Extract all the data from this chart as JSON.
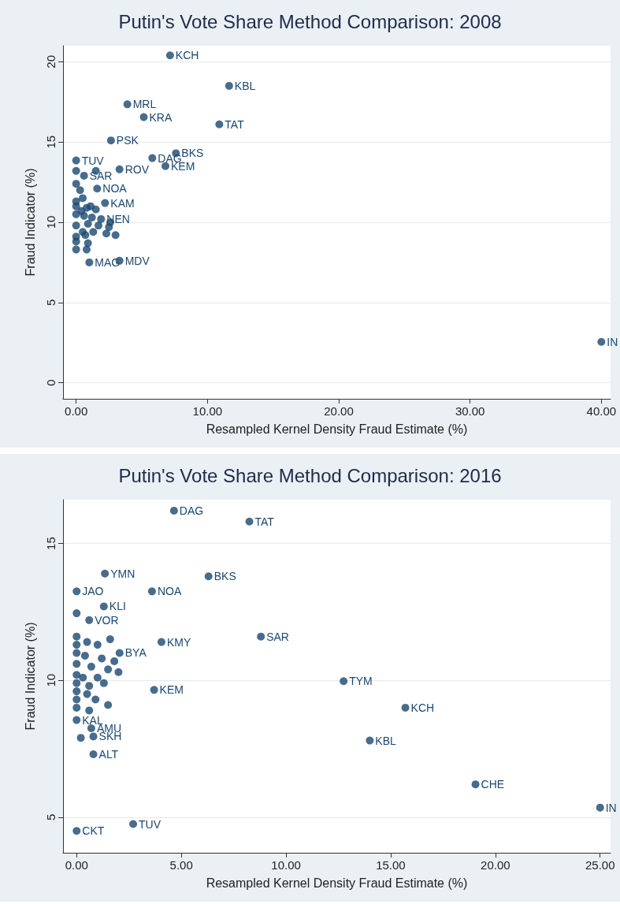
{
  "chart_data": [
    {
      "type": "scatter",
      "title": "Putin's Vote Share Method Comparison: 2008",
      "xlabel": "Resampled Kernel Density Fraud Estimate (%)",
      "ylabel": "Fraud Indicator (%)",
      "x": [
        7.15,
        11.65,
        3.9,
        5.15,
        10.9,
        2.65,
        7.6,
        5.8,
        6.8,
        0,
        3.3,
        1.0,
        40.0,
        0.6,
        1.6,
        2.2,
        1.9,
        3.3,
        0,
        1.5,
        0,
        0.3,
        0.5,
        0,
        0,
        0.8,
        1.5,
        0,
        0.6,
        1.2,
        0.9,
        1.7,
        2.5,
        0.5,
        1.3,
        2.3,
        0,
        0.7,
        0,
        0.9,
        0,
        0.8,
        0,
        2.6,
        3.0,
        0.4,
        1.1
      ],
      "series": [
        {
          "color": "#1a476f",
          "values": [
            20.4,
            18.5,
            17.35,
            16.55,
            16.1,
            15.1,
            14.3,
            14.0,
            13.5,
            13.85,
            7.6,
            7.5,
            2.55,
            12.9,
            12.1,
            11.2,
            10.2,
            13.3,
            13.2,
            13.2,
            12.4,
            12.0,
            11.5,
            11.3,
            11.0,
            10.9,
            10.8,
            10.5,
            10.4,
            10.3,
            9.9,
            9.8,
            9.7,
            9.4,
            9.4,
            9.3,
            9.1,
            9.2,
            8.8,
            8.7,
            8.3,
            8.3,
            9.8,
            10.0,
            9.2,
            10.7,
            11.0
          ]
        }
      ],
      "xlim": [
        -1,
        40.7
      ],
      "ylim": [
        -1,
        21
      ],
      "xticks": [
        {
          "value": 0,
          "label": "0.00"
        },
        {
          "value": 10,
          "label": "10.00"
        },
        {
          "value": 20,
          "label": "20.00"
        },
        {
          "value": 30,
          "label": "30.00"
        },
        {
          "value": 40,
          "label": "40.00"
        }
      ],
      "yticks": [
        0,
        5,
        10,
        15,
        20
      ],
      "grid": "y",
      "marker": "circle",
      "annotations": [
        {
          "text": "KCH",
          "x": 7.15,
          "y": 20.4
        },
        {
          "text": "KBL",
          "x": 11.65,
          "y": 18.5
        },
        {
          "text": "MRL",
          "x": 3.9,
          "y": 17.35
        },
        {
          "text": "KRA",
          "x": 5.15,
          "y": 16.55
        },
        {
          "text": "TAT",
          "x": 10.9,
          "y": 16.1
        },
        {
          "text": "PSK",
          "x": 2.65,
          "y": 15.1
        },
        {
          "text": "BKS",
          "x": 7.6,
          "y": 14.3
        },
        {
          "text": "DAG",
          "x": 5.8,
          "y": 14.0
        },
        {
          "text": "KEM",
          "x": 6.8,
          "y": 13.5
        },
        {
          "text": "TUV",
          "x": 0,
          "y": 13.85
        },
        {
          "text": "MDV",
          "x": 3.3,
          "y": 7.6
        },
        {
          "text": "MAG",
          "x": 1.0,
          "y": 7.5
        },
        {
          "text": "IN",
          "x": 40.0,
          "y": 2.55
        },
        {
          "text": "SAR",
          "x": 0.6,
          "y": 12.9
        },
        {
          "text": "NOA",
          "x": 1.6,
          "y": 12.1
        },
        {
          "text": "KAM",
          "x": 2.2,
          "y": 11.2
        },
        {
          "text": "NEN",
          "x": 1.9,
          "y": 10.2
        },
        {
          "text": "ROV",
          "x": 3.3,
          "y": 13.3
        }
      ]
    },
    {
      "type": "scatter",
      "title": "Putin's Vote Share Method Comparison: 2016",
      "xlabel": "Resampled Kernel Density Fraud Estimate (%)",
      "ylabel": "Fraud Indicator (%)",
      "x": [
        4.65,
        8.25,
        1.35,
        6.3,
        0,
        3.6,
        1.3,
        0,
        0.6,
        8.8,
        4.05,
        1.6,
        2.05,
        12.75,
        15.7,
        14.0,
        19.05,
        25.0,
        3.7,
        0,
        0.7,
        0.8,
        0.2,
        0.8,
        2.7,
        0,
        0.6,
        0,
        0,
        0.5,
        1.0,
        0,
        0.4,
        1.2,
        1.8,
        0,
        0.7,
        1.5,
        0,
        0.3,
        1.0,
        2.0,
        0,
        0.6,
        1.3,
        0,
        0.5,
        0,
        0.9,
        0,
        1.5
      ],
      "series": [
        {
          "color": "#1a476f",
          "values": [
            16.2,
            15.8,
            13.9,
            13.8,
            13.25,
            13.25,
            12.7,
            12.45,
            12.2,
            11.6,
            11.4,
            11.5,
            11.0,
            9.97,
            9.0,
            7.8,
            6.2,
            5.35,
            9.65,
            8.55,
            8.25,
            7.95,
            7.9,
            7.3,
            4.75,
            4.5,
            8.9,
            11.6,
            11.3,
            11.4,
            11.3,
            11.0,
            10.9,
            10.8,
            10.7,
            10.6,
            10.5,
            10.4,
            10.2,
            10.1,
            10.1,
            10.3,
            9.9,
            9.8,
            9.9,
            9.6,
            9.5,
            9.3,
            9.3,
            9.0,
            9.1
          ]
        }
      ],
      "xlim": [
        -0.65,
        25.5
      ],
      "ylim": [
        3.7,
        16.6
      ],
      "xticks": [
        {
          "value": 0,
          "label": "0.00"
        },
        {
          "value": 5,
          "label": "5.00"
        },
        {
          "value": 10,
          "label": "10.00"
        },
        {
          "value": 15,
          "label": "15.00"
        },
        {
          "value": 20,
          "label": "20.00"
        },
        {
          "value": 25,
          "label": "25.00"
        }
      ],
      "yticks": [
        5,
        10,
        15
      ],
      "grid": "y",
      "marker": "circle",
      "annotations": [
        {
          "text": "DAG",
          "x": 4.65,
          "y": 16.2
        },
        {
          "text": "TAT",
          "x": 8.25,
          "y": 15.8
        },
        {
          "text": "YMN",
          "x": 1.35,
          "y": 13.9
        },
        {
          "text": "BKS",
          "x": 6.3,
          "y": 13.8
        },
        {
          "text": "JAO",
          "x": 0,
          "y": 13.25
        },
        {
          "text": "NOA",
          "x": 3.6,
          "y": 13.25
        },
        {
          "text": "KLI",
          "x": 1.3,
          "y": 12.7
        },
        {
          "text": "VOR",
          "x": 0.6,
          "y": 12.2
        },
        {
          "text": "SAR",
          "x": 8.8,
          "y": 11.6
        },
        {
          "text": "KMY",
          "x": 4.05,
          "y": 11.4
        },
        {
          "text": "BYA",
          "x": 2.05,
          "y": 11.0
        },
        {
          "text": "TYM",
          "x": 12.75,
          "y": 9.97
        },
        {
          "text": "KCH",
          "x": 15.7,
          "y": 9.0
        },
        {
          "text": "KBL",
          "x": 14.0,
          "y": 7.8
        },
        {
          "text": "CHE",
          "x": 19.05,
          "y": 6.2
        },
        {
          "text": "IN",
          "x": 25.0,
          "y": 5.35
        },
        {
          "text": "KEM",
          "x": 3.7,
          "y": 9.65
        },
        {
          "text": "KAL",
          "x": 0,
          "y": 8.55
        },
        {
          "text": "AMU",
          "x": 0.7,
          "y": 8.25
        },
        {
          "text": "SKH",
          "x": 0.8,
          "y": 7.95
        },
        {
          "text": "ALT",
          "x": 0.8,
          "y": 7.3
        },
        {
          "text": "TUV",
          "x": 2.7,
          "y": 4.75
        },
        {
          "text": "CKT",
          "x": 0,
          "y": 4.5
        }
      ]
    }
  ]
}
